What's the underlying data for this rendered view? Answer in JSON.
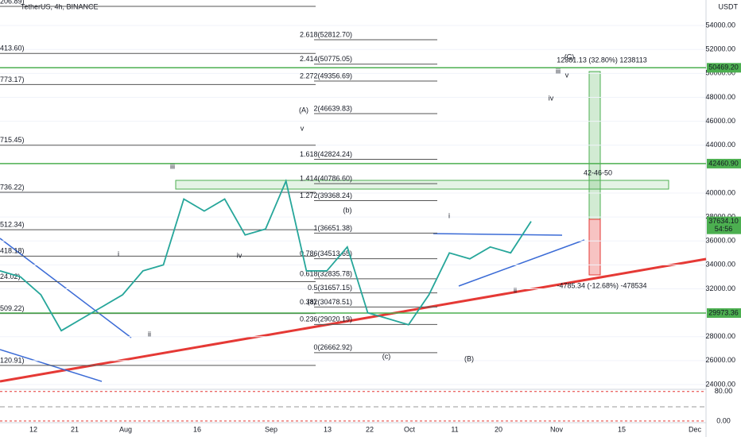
{
  "title": "TetherUS, 4h, BINANCE",
  "currency": "USDT",
  "price_axis": {
    "ylim": [
      23600,
      56133
    ],
    "ticks": [
      {
        "value": 54000,
        "label": "54000.00"
      },
      {
        "value": 52000,
        "label": "52000.00"
      },
      {
        "value": 50000,
        "label": "50000.00"
      },
      {
        "value": 48000,
        "label": "48000.00"
      },
      {
        "value": 46000,
        "label": "46000.00"
      },
      {
        "value": 44000,
        "label": "44000.00"
      },
      {
        "value": 40000,
        "label": "40000.00"
      },
      {
        "value": 38000,
        "label": "38000.00"
      },
      {
        "value": 36000,
        "label": "36000.00"
      },
      {
        "value": 34000,
        "label": "34000.00"
      },
      {
        "value": 32000,
        "label": "32000.00"
      },
      {
        "value": 28000,
        "label": "28000.00"
      },
      {
        "value": 26000,
        "label": "26000.00"
      },
      {
        "value": 24000,
        "label": "24000.00"
      }
    ]
  },
  "price_labels": [
    {
      "label": "50469.20",
      "value": 50469.2
    },
    {
      "label": "42460.90",
      "value": 42460.9
    },
    {
      "label": "37634.10",
      "value": 37634.1
    },
    {
      "label": "29973.36",
      "value": 29973.36
    }
  ],
  "countdown": "54:56",
  "fib_levels": [
    {
      "label": "2.618(52812.70)",
      "price": 52812.7
    },
    {
      "label": "2.414(50775.05)",
      "price": 50775.05
    },
    {
      "label": "2.272(49356.69)",
      "price": 49356.69
    },
    {
      "label": "2(46639.83)",
      "price": 46639.83
    },
    {
      "label": "1.618(42824.24)",
      "price": 42824.24
    },
    {
      "label": "1.414(40786.60)",
      "price": 40786.6
    },
    {
      "label": "1.272(39368.24)",
      "price": 39368.24
    },
    {
      "label": "1(36651.38)",
      "price": 36651.38
    },
    {
      "label": "0.786(34513.65)",
      "price": 34513.65
    },
    {
      "label": "0.618(32835.78)",
      "price": 32835.78
    },
    {
      "label": "0.5(31657.15)",
      "price": 31657.15
    },
    {
      "label": "0.382(30478.51)",
      "price": 30478.51
    },
    {
      "label": "0.236(29020.19)",
      "price": 29020.19
    },
    {
      "label": "0(26662.92)",
      "price": 26662.92
    }
  ],
  "left_levels": [
    {
      "label": "206.89)",
      "price": 55600
    },
    {
      "label": "413.60)",
      "price": 51667
    },
    {
      "label": "773.17)",
      "price": 49067
    },
    {
      "label": "715.45)",
      "price": 44000
    },
    {
      "label": "736.22)",
      "price": 40067
    },
    {
      "label": "512.34)",
      "price": 36933
    },
    {
      "label": "418.18)",
      "price": 34733
    },
    {
      "label": "24.02)",
      "price": 32600
    },
    {
      "label": "509.22)",
      "price": 29933
    },
    {
      "label": "120.91)",
      "price": 25600
    }
  ],
  "wave_labels": [
    {
      "label": "(A)",
      "color": "#e53935"
    },
    {
      "label": "v",
      "color": "#8d6e63"
    },
    {
      "label": "iii",
      "color": "#8d6e63"
    },
    {
      "label": "(b)",
      "color": "#8d6e63"
    },
    {
      "label": "i",
      "color": "#8d6e63"
    },
    {
      "label": "iv",
      "color": "#8d6e63"
    },
    {
      "label": "(a)",
      "color": "#8d6e63"
    },
    {
      "label": "ii",
      "color": "#8d6e63"
    },
    {
      "label": "(c)",
      "color": "#8d6e63"
    },
    {
      "label": "(B)",
      "color": "#e53935"
    },
    {
      "label": "i",
      "color": "#8d6e63"
    },
    {
      "label": "ii",
      "color": "#8d6e63"
    },
    {
      "label": "iii",
      "color": "#8d6e63"
    },
    {
      "label": "v",
      "color": "#8d6e63"
    },
    {
      "label": "iv",
      "color": "#8d6e63"
    },
    {
      "label": "(C)",
      "color": "#e53935"
    }
  ],
  "measures": [
    "12381.13 (32.80%) 1238113",
    "-4785.34 (-12.68%) -478534",
    "42-46-50"
  ],
  "date_labels": [
    "12",
    "21",
    "Aug",
    "16",
    "Sep",
    "13",
    "22",
    "Oct",
    "11",
    "20",
    "Nov",
    "15",
    "Dec"
  ],
  "price_path": [
    33500,
    33000,
    31500,
    28500,
    29500,
    30500,
    31500,
    33500,
    34000,
    39500,
    38500,
    39500,
    36500,
    37000,
    41000,
    33500,
    33500,
    35500,
    30000,
    29500,
    29000,
    31500,
    35000,
    34500,
    35500,
    35000,
    37634.1
  ],
  "rsi_axis": {
    "ylim": [
      -11,
      86
    ],
    "ticks": [
      {
        "value": 80,
        "label": "80.00"
      },
      {
        "value": 0,
        "label": "0.00"
      }
    ]
  }
}
